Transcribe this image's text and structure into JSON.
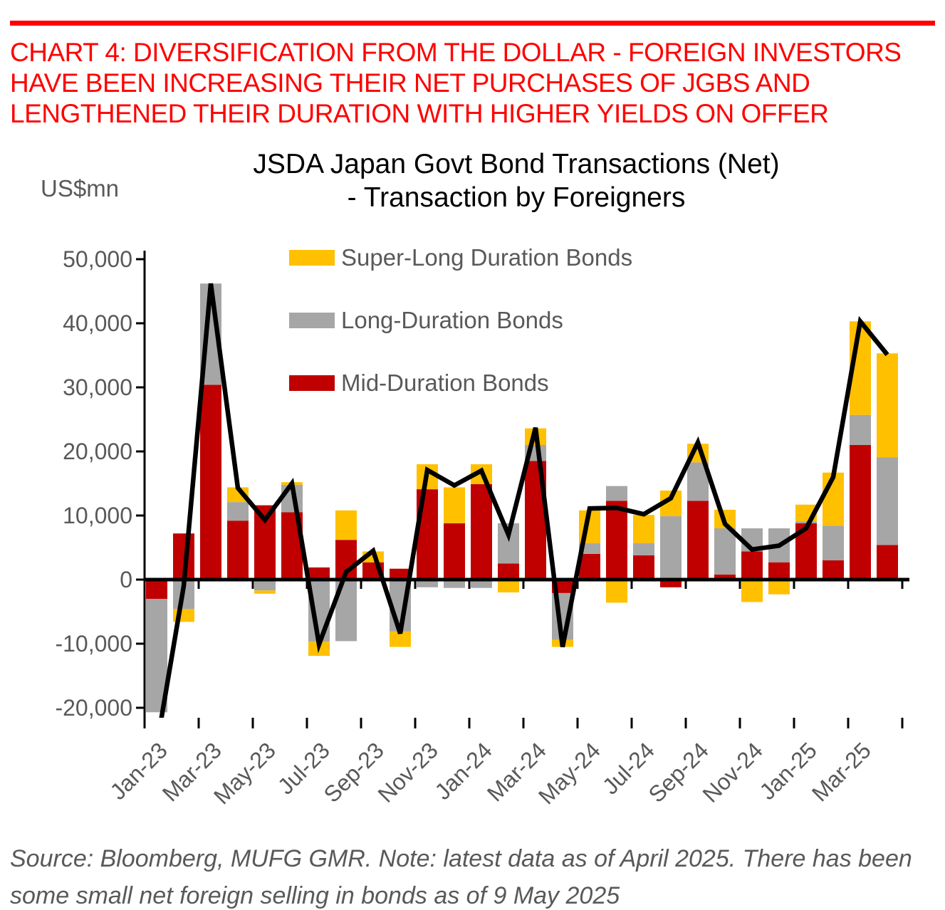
{
  "header": {
    "rule_color": "#FF0000",
    "text_color": "#FF0000",
    "lines": [
      "CHART 4: DIVERSIFICATION FROM THE DOLLAR - FOREIGN INVESTORS",
      "HAVE BEEN INCREASING THEIR NET PURCHASES OF JGBS AND",
      "LENGTHENED THEIR DURATION WITH HIGHER YIELDS ON OFFER"
    ]
  },
  "chart": {
    "title_line1": "JSDA Japan Govt Bond Transactions (Net)",
    "title_line2": "- Transaction by Foreigners",
    "unit_label": "US$mn",
    "axis_text_color": "#595959",
    "legend": [
      {
        "label": "Super-Long Duration Bonds",
        "color": "#FFC000"
      },
      {
        "label": "Long-Duration Bonds",
        "color": "#A6A6A6"
      },
      {
        "label": "Mid-Duration Bonds",
        "color": "#C00000"
      }
    ]
  },
  "chart_data": {
    "type": "stacked-bar-with-line",
    "title": "JSDA Japan Govt Bond Transactions (Net) - Transaction by Foreigners",
    "ylabel": "US$mn",
    "ylim": [
      -21500,
      51300
    ],
    "yticks": [
      -20000,
      -10000,
      0,
      10000,
      20000,
      30000,
      40000,
      50000
    ],
    "ytick_labels": [
      "-20,000",
      "-10,000",
      "0",
      "10,000",
      "20,000",
      "30,000",
      "40,000",
      "50,000"
    ],
    "grid": false,
    "legend_position": "top-inside",
    "categories": [
      "Jan-23",
      "Feb-23",
      "Mar-23",
      "Apr-23",
      "May-23",
      "Jun-23",
      "Jul-23",
      "Aug-23",
      "Sep-23",
      "Oct-23",
      "Nov-23",
      "Dec-23",
      "Jan-24",
      "Feb-24",
      "Mar-24",
      "Apr-24",
      "May-24",
      "Jun-24",
      "Jul-24",
      "Aug-24",
      "Sep-24",
      "Oct-24",
      "Nov-24",
      "Dec-24",
      "Jan-25",
      "Feb-25",
      "Mar-25",
      "Apr-25"
    ],
    "xtick_labels": [
      "Jan-23",
      "Mar-23",
      "May-23",
      "Jul-23",
      "Sep-23",
      "Nov-23",
      "Jan-24",
      "Mar-24",
      "May-24",
      "Jul-24",
      "Sep-24",
      "Nov-24",
      "Jan-25",
      "Mar-25"
    ],
    "series": [
      {
        "name": "Mid-Duration Bonds",
        "color": "#C00000",
        "values": [
          -3000,
          7200,
          30400,
          9200,
          11600,
          10500,
          1900,
          6200,
          2700,
          1700,
          14100,
          8800,
          14900,
          2500,
          18500,
          -2100,
          4000,
          12300,
          3800,
          -1200,
          12300,
          800,
          4400,
          2700,
          8800,
          3000,
          21000,
          5400
        ]
      },
      {
        "name": "Long-Duration Bonds",
        "color": "#A6A6A6",
        "values": [
          -17700,
          -4600,
          15800,
          2900,
          -1700,
          4300,
          -9700,
          -9600,
          0,
          -8100,
          -1200,
          -1300,
          -1300,
          6300,
          2500,
          -7300,
          1700,
          2300,
          1900,
          9900,
          6000,
          7200,
          3600,
          5300,
          300,
          5400,
          4700,
          13700
        ]
      },
      {
        "name": "Super-Long Duration Bonds",
        "color": "#FFC000",
        "values": [
          0,
          -2000,
          0,
          2300,
          -500,
          400,
          -2200,
          4600,
          1700,
          -2400,
          3900,
          5600,
          3100,
          -2000,
          2600,
          -1100,
          5100,
          -3600,
          4400,
          4000,
          2900,
          2900,
          -3500,
          -2300,
          2600,
          8300,
          14600,
          16200
        ]
      }
    ],
    "line": {
      "color": "#000000",
      "values": [
        -26000,
        -1000,
        46200,
        14300,
        9300,
        15000,
        -10100,
        1200,
        4500,
        -8400,
        17100,
        14700,
        17000,
        7000,
        23700,
        -10500,
        11100,
        11200,
        10200,
        12700,
        21400,
        8700,
        4700,
        5300,
        8000,
        16000,
        40300,
        35100
      ]
    }
  },
  "source_note": {
    "line1": "Source: Bloomberg, MUFG GMR. Note: latest data as of April 2025. There has been",
    "line2": "some small net foreign selling in bonds as of 9 May 2025"
  }
}
